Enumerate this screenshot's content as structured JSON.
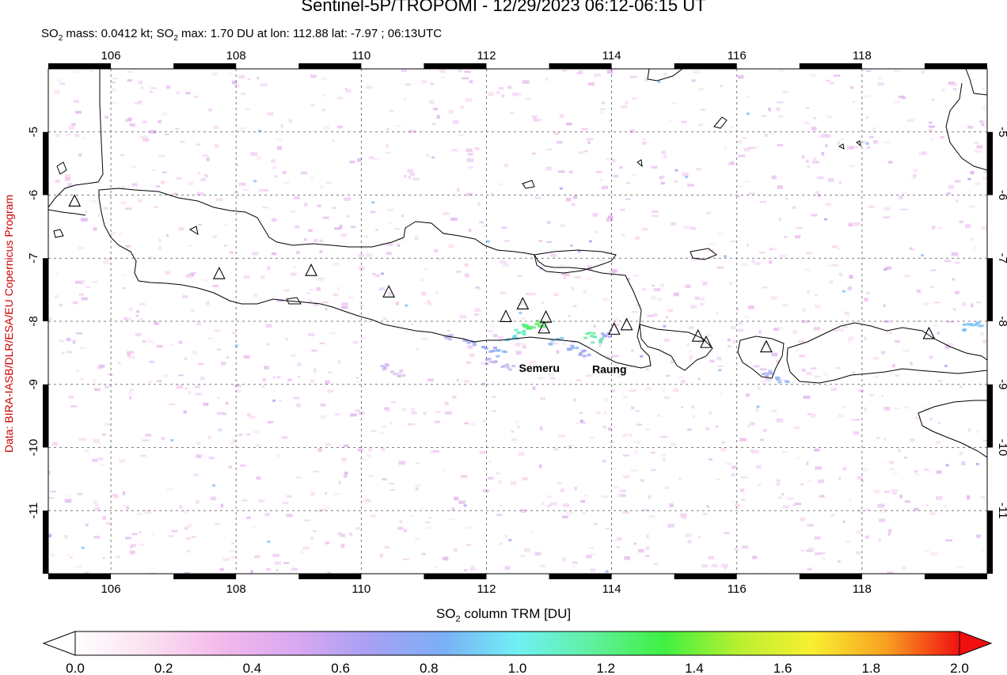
{
  "header": {
    "title": "Sentinel-5P/TROPOMI - 12/29/2023 06:12-06:15 UT",
    "subtitle_parts": [
      "SO",
      "2",
      " mass: 0.0412 kt; SO",
      "2",
      " max: 1.70 DU at lon: 112.88 lat: -7.97 ; 06:13UTC"
    ]
  },
  "credit": "Data: BIRA-IASB/DLR/ESA/EU Copernicus Program",
  "map": {
    "lon_range": [
      105,
      120
    ],
    "lat_range": [
      -12,
      -4
    ],
    "lon_ticks": [
      "106",
      "108",
      "110",
      "112",
      "114",
      "116",
      "118"
    ],
    "lat_ticks": [
      "-5",
      "-6",
      "-7",
      "-8",
      "-9",
      "-10",
      "-11"
    ],
    "grid": "dashed",
    "volcano_labels": [
      {
        "name": "Semeru",
        "lon": 112.92,
        "lat": -8.11
      },
      {
        "name": "Raung",
        "lon": 114.04,
        "lat": -8.13
      }
    ],
    "volcanoes": [
      {
        "lon": 105.42,
        "lat": -6.1
      },
      {
        "lon": 107.73,
        "lat": -7.25
      },
      {
        "lon": 109.2,
        "lat": -7.2
      },
      {
        "lon": 110.44,
        "lat": -7.54
      },
      {
        "lon": 112.31,
        "lat": -7.93
      },
      {
        "lon": 112.58,
        "lat": -7.73
      },
      {
        "lon": 112.92,
        "lat": -8.11
      },
      {
        "lon": 112.95,
        "lat": -7.94
      },
      {
        "lon": 114.04,
        "lat": -8.13
      },
      {
        "lon": 114.24,
        "lat": -8.06
      },
      {
        "lon": 115.38,
        "lat": -8.24
      },
      {
        "lon": 115.51,
        "lat": -8.34
      },
      {
        "lon": 116.47,
        "lat": -8.41
      },
      {
        "lon": 119.07,
        "lat": -8.2
      }
    ],
    "so2_hotspot": {
      "lon": 112.88,
      "lat": -7.97,
      "max_du": 1.7
    }
  },
  "colorbar": {
    "label_parts": [
      "SO",
      "2",
      " column TRM [DU]"
    ],
    "ticks": [
      "0.0",
      "0.2",
      "0.4",
      "0.6",
      "0.8",
      "1.0",
      "1.2",
      "1.4",
      "1.6",
      "1.8",
      "2.0"
    ],
    "colors": [
      "#ffffff",
      "#fbe0f0",
      "#f3b8ec",
      "#d8a8f0",
      "#a8a0f4",
      "#7ab0f6",
      "#70f0f4",
      "#60f0a0",
      "#40f040",
      "#b8f030",
      "#f8f030",
      "#f8a020",
      "#f01010"
    ]
  }
}
